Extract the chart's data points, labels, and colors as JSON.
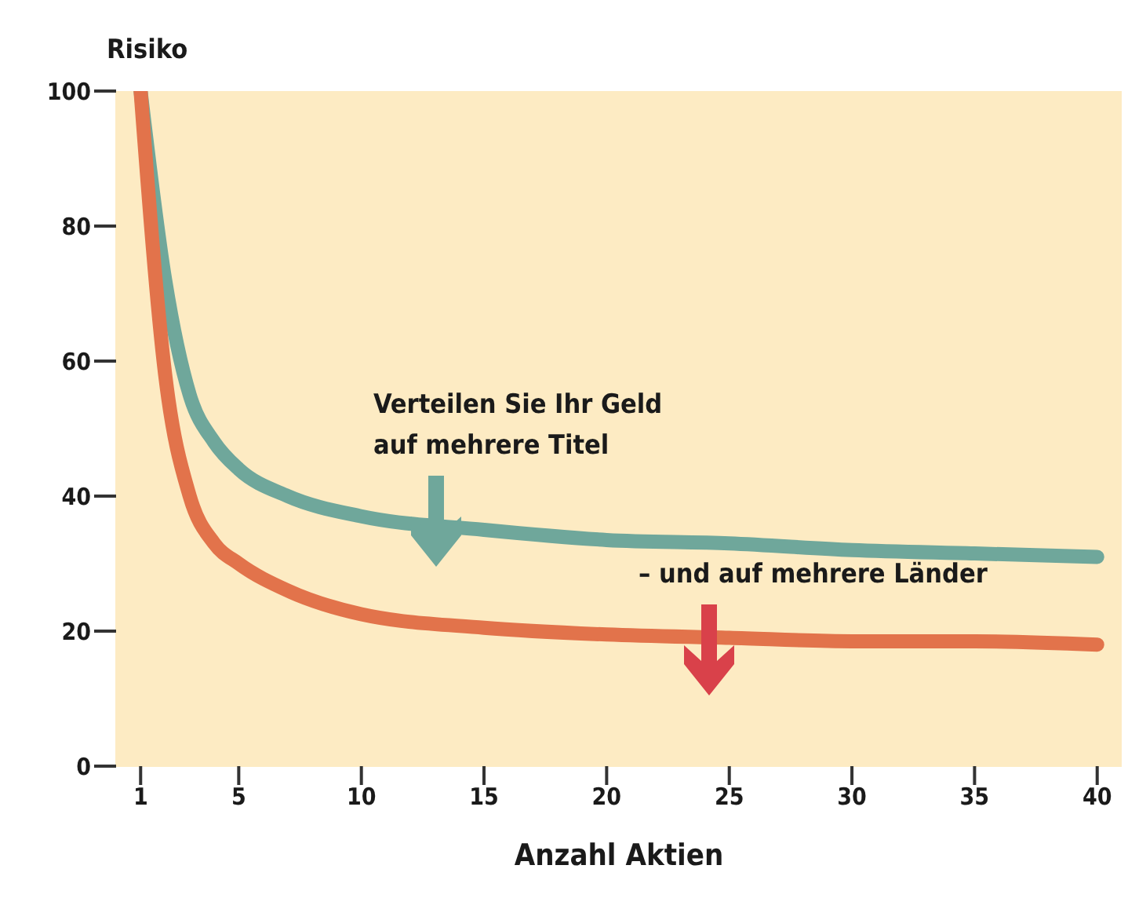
{
  "chart_data": {
    "type": "line",
    "ylabel": "Risiko",
    "xlabel": "Anzahl Aktien",
    "x": [
      1,
      2,
      3,
      4,
      5,
      7,
      10,
      15,
      20,
      25,
      30,
      35,
      40
    ],
    "series": [
      {
        "color": "#6fa79b",
        "values": [
          100,
          72,
          55,
          48,
          44,
          40,
          37,
          35,
          33.5,
          33,
          32,
          31.5,
          31
        ]
      },
      {
        "color": "#e2734b",
        "values": [
          100,
          58,
          40,
          33,
          30,
          26,
          22.5,
          20.5,
          19.5,
          19,
          18.5,
          18.5,
          18
        ]
      }
    ],
    "xlim": [
      0,
      41
    ],
    "xticks": [
      1,
      5,
      10,
      15,
      20,
      25,
      30,
      35,
      40
    ],
    "ylim": [
      0,
      100
    ],
    "yticks": [
      0,
      20,
      40,
      60,
      80,
      100
    ],
    "grid": false,
    "marker": "none",
    "line_style": "solid",
    "annotations": [
      "Verteilen Sie Ihr Geld\nauf mehrere Titel",
      "– und auf mehrere Länder"
    ]
  }
}
